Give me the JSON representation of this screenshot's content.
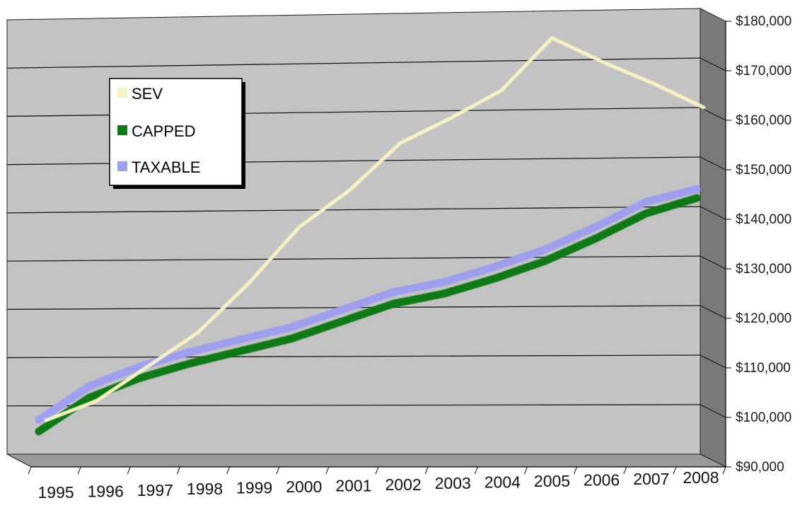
{
  "chart_data": {
    "type": "line",
    "title": "",
    "xlabel": "",
    "ylabel": "",
    "x": [
      "1995",
      "1996",
      "1997",
      "1998",
      "1999",
      "2000",
      "2001",
      "2002",
      "2003",
      "2004",
      "2005",
      "2006",
      "2007",
      "2008"
    ],
    "ylim": [
      90000,
      180000
    ],
    "y_ticks": [
      "$90,000",
      "$100,000",
      "$110,000",
      "$120,000",
      "$130,000",
      "$140,000",
      "$150,000",
      "$160,000",
      "$170,000",
      "$180,000"
    ],
    "grid": true,
    "legend_position": "top-left",
    "series": [
      {
        "name": "SEV",
        "color": "#f5f2c4",
        "values": [
          97000,
          101000,
          108000,
          115000,
          125000,
          136500,
          144000,
          153500,
          158500,
          164000,
          174500,
          169500,
          165000,
          160000
        ]
      },
      {
        "name": "CAPPED",
        "color": "#0b7a12",
        "values": [
          95000,
          102000,
          106000,
          109000,
          111500,
          114000,
          117500,
          121000,
          123000,
          126000,
          129500,
          134000,
          139000,
          142000
        ]
      },
      {
        "name": "TAXABLE",
        "color": "#9f9ff0",
        "values": [
          96500,
          103500,
          107500,
          110500,
          113000,
          115500,
          119000,
          122500,
          124500,
          127500,
          131000,
          135500,
          140500,
          143000
        ]
      }
    ]
  }
}
